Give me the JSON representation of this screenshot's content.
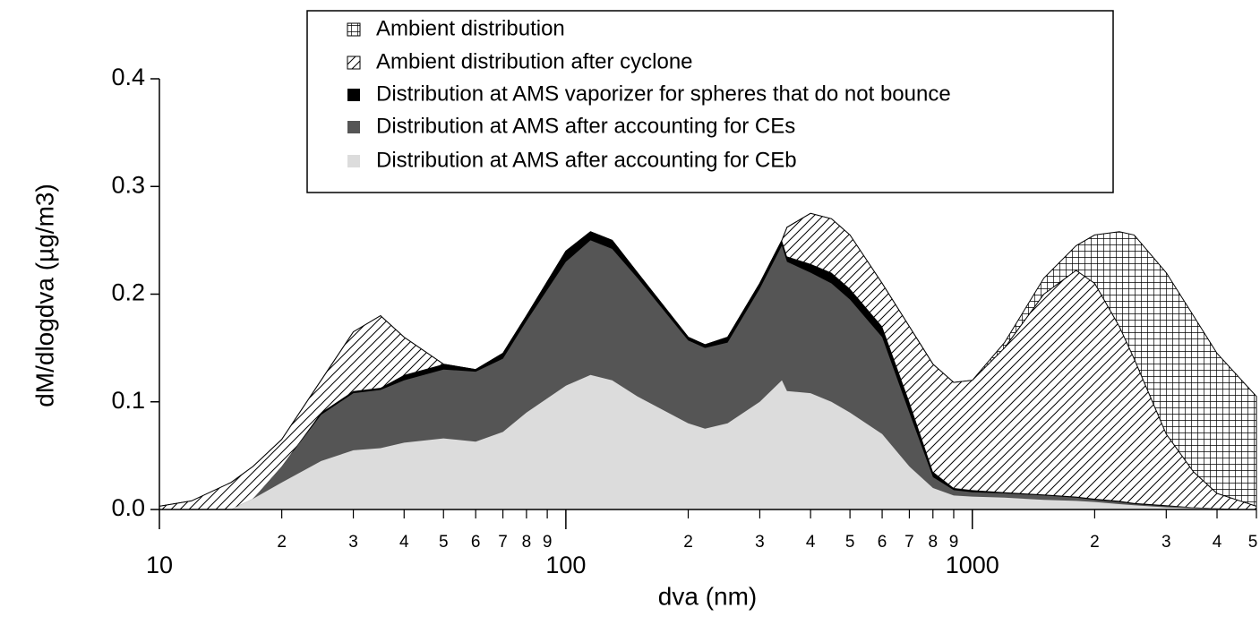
{
  "chart_data": {
    "type": "area",
    "xlabel": "dva (nm)",
    "ylabel": "dM/dlogdva (µg/m3)",
    "xscale": "log",
    "x": [
      10,
      12,
      15,
      17,
      20,
      25,
      30,
      35,
      40,
      50,
      60,
      70,
      80,
      100,
      115,
      130,
      150,
      200,
      220,
      250,
      300,
      340,
      350,
      400,
      450,
      500,
      600,
      700,
      800,
      900,
      1000,
      1200,
      1500,
      1800,
      2000,
      2300,
      2500,
      3000,
      3500,
      4000,
      5000
    ],
    "series": [
      {
        "name": "Ambient distribution",
        "color": "#000000",
        "pattern": "crosshatch",
        "values": [
          0.003,
          0.008,
          0.025,
          0.04,
          0.065,
          0.12,
          0.165,
          0.18,
          0.16,
          0.135,
          0.13,
          0.145,
          0.18,
          0.24,
          0.258,
          0.25,
          0.22,
          0.16,
          0.153,
          0.16,
          0.21,
          0.25,
          0.262,
          0.275,
          0.27,
          0.255,
          0.21,
          0.17,
          0.135,
          0.118,
          0.12,
          0.155,
          0.215,
          0.245,
          0.255,
          0.258,
          0.255,
          0.22,
          0.18,
          0.145,
          0.105
        ]
      },
      {
        "name": "Ambient distribution after cyclone",
        "color": "#000000",
        "pattern": "hatch",
        "values": [
          0.003,
          0.008,
          0.025,
          0.04,
          0.065,
          0.12,
          0.165,
          0.18,
          0.16,
          0.135,
          0.13,
          0.145,
          0.18,
          0.24,
          0.258,
          0.25,
          0.22,
          0.16,
          0.153,
          0.16,
          0.21,
          0.25,
          0.262,
          0.275,
          0.27,
          0.255,
          0.21,
          0.17,
          0.135,
          0.118,
          0.12,
          0.15,
          0.2,
          0.222,
          0.21,
          0.17,
          0.14,
          0.07,
          0.035,
          0.015,
          0.003
        ]
      },
      {
        "name": "Distribution at AMS vaporizer for spheres that do not bounce",
        "color": "#000000",
        "values": [
          0,
          0,
          0,
          0.01,
          0.04,
          0.09,
          0.11,
          0.113,
          0.125,
          0.135,
          0.13,
          0.145,
          0.18,
          0.24,
          0.258,
          0.25,
          0.22,
          0.16,
          0.153,
          0.16,
          0.21,
          0.25,
          0.235,
          0.228,
          0.22,
          0.205,
          0.17,
          0.1,
          0.035,
          0.02,
          0.018,
          0.016,
          0.014,
          0.012,
          0.01,
          0.008,
          0.006,
          0.004,
          0.002,
          0.001,
          0
        ]
      },
      {
        "name": "Distribution at AMS after accounting for CEs",
        "color": "#555555",
        "values": [
          0,
          0,
          0,
          0.01,
          0.04,
          0.088,
          0.108,
          0.111,
          0.12,
          0.13,
          0.128,
          0.14,
          0.175,
          0.23,
          0.25,
          0.242,
          0.215,
          0.157,
          0.15,
          0.155,
          0.205,
          0.245,
          0.23,
          0.22,
          0.21,
          0.195,
          0.16,
          0.09,
          0.03,
          0.018,
          0.016,
          0.015,
          0.013,
          0.011,
          0.009,
          0.007,
          0.005,
          0.003,
          0.002,
          0.001,
          0
        ]
      },
      {
        "name": "Distribution at AMS after accounting for CEb",
        "color": "#dcdcdc",
        "values": [
          0,
          0,
          0,
          0.01,
          0.025,
          0.045,
          0.055,
          0.057,
          0.062,
          0.066,
          0.063,
          0.072,
          0.09,
          0.115,
          0.125,
          0.12,
          0.105,
          0.08,
          0.075,
          0.08,
          0.1,
          0.12,
          0.11,
          0.108,
          0.1,
          0.09,
          0.07,
          0.04,
          0.02,
          0.013,
          0.012,
          0.011,
          0.009,
          0.008,
          0.007,
          0.005,
          0.004,
          0.002,
          0.001,
          0.0005,
          0
        ]
      }
    ],
    "xlim": [
      10,
      5000
    ],
    "ylim": [
      0,
      0.4
    ],
    "yticks": [
      {
        "value": 0,
        "label": "0.0"
      },
      {
        "value": 0.1,
        "label": "0.1"
      },
      {
        "value": 0.2,
        "label": "0.2"
      },
      {
        "value": 0.3,
        "label": "0.3"
      },
      {
        "value": 0.4,
        "label": "0.4"
      }
    ],
    "xticks": [
      10,
      100,
      1000
    ],
    "xminorticks": [
      {
        "value": 20,
        "label": "2"
      },
      {
        "value": 30,
        "label": "3"
      },
      {
        "value": 40,
        "label": "4"
      },
      {
        "value": 50,
        "label": "5"
      },
      {
        "value": 60,
        "label": "6"
      },
      {
        "value": 70,
        "label": "7"
      },
      {
        "value": 80,
        "label": "8"
      },
      {
        "value": 90,
        "label": "9"
      },
      {
        "value": 200,
        "label": "2"
      },
      {
        "value": 300,
        "label": "3"
      },
      {
        "value": 400,
        "label": "4"
      },
      {
        "value": 500,
        "label": "5"
      },
      {
        "value": 600,
        "label": "6"
      },
      {
        "value": 700,
        "label": "7"
      },
      {
        "value": 800,
        "label": "8"
      },
      {
        "value": 900,
        "label": "9"
      },
      {
        "value": 2000,
        "label": "2"
      },
      {
        "value": 3000,
        "label": "3"
      },
      {
        "value": 4000,
        "label": "4"
      },
      {
        "value": 5000,
        "label": "5"
      }
    ],
    "legend": "top"
  }
}
